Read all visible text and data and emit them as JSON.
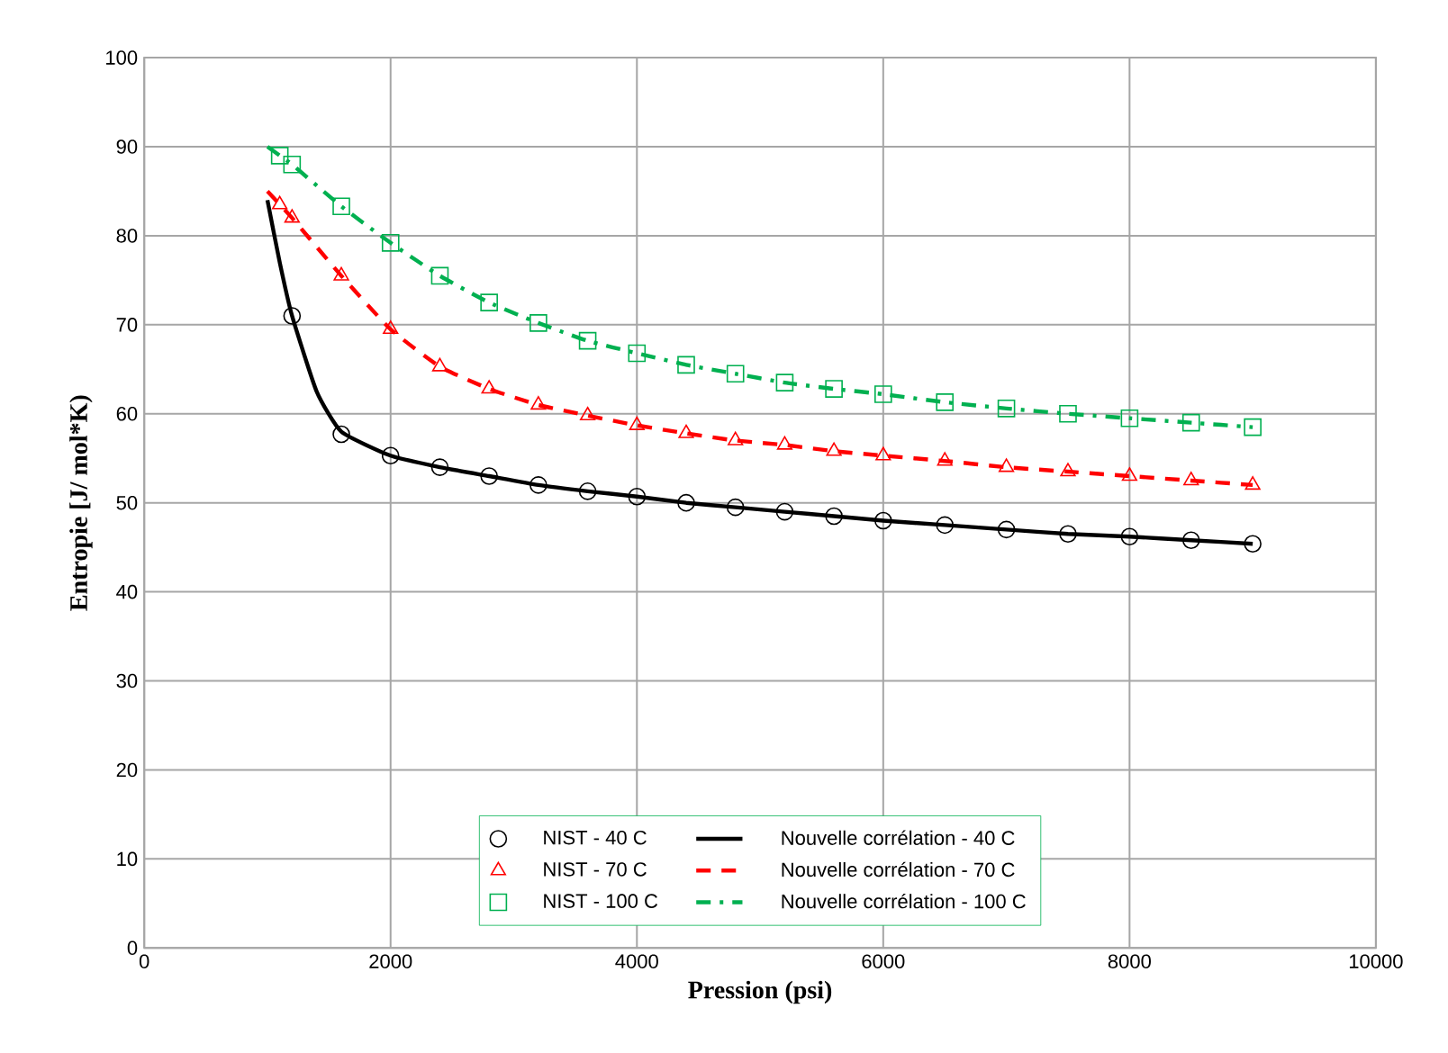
{
  "chart_data": {
    "type": "scatter",
    "xlabel": "Pression (psi)",
    "ylabel": "Entropie  [J/ mol*K)",
    "xlim": [
      0,
      10000
    ],
    "ylim": [
      0,
      100
    ],
    "xticks": [
      0,
      2000,
      4000,
      6000,
      8000,
      10000
    ],
    "yticks": [
      0,
      10,
      20,
      30,
      40,
      50,
      60,
      70,
      80,
      90,
      100
    ],
    "grid": true,
    "legend": "bottom",
    "series": [
      {
        "name": "NIST - 40 C",
        "marker": "circle",
        "color": "#000000",
        "x": [
          1200,
          1600,
          2000,
          2400,
          2800,
          3200,
          3600,
          4000,
          4400,
          4800,
          5200,
          5600,
          6000,
          6500,
          7000,
          7500,
          8000,
          8500,
          9000
        ],
        "values": [
          71,
          57.7,
          55.3,
          54,
          53,
          52,
          51.3,
          50.7,
          50,
          49.5,
          49,
          48.5,
          48,
          47.5,
          47,
          46.5,
          46.2,
          45.8,
          45.4
        ]
      },
      {
        "name": "Nouvelle corrélation - 40 C",
        "type": "line",
        "marker": "none",
        "line_style": "solid",
        "color": "#000000",
        "x": [
          1000,
          1100,
          1200,
          1400,
          1600,
          2000,
          2400,
          2800,
          3200,
          3600,
          4000,
          4400,
          4800,
          5200,
          5600,
          6000,
          6500,
          7000,
          7500,
          8000,
          8500,
          9000
        ],
        "values": [
          84,
          77,
          71,
          62.5,
          58,
          55.3,
          54,
          53,
          52,
          51.3,
          50.7,
          50,
          49.5,
          49,
          48.5,
          48,
          47.5,
          47,
          46.5,
          46.2,
          45.8,
          45.4
        ]
      },
      {
        "name": "NIST - 70 C",
        "marker": "triangle",
        "color": "#ff0000",
        "x": [
          1100,
          1200,
          1600,
          2000,
          2400,
          2800,
          3200,
          3600,
          4000,
          4400,
          4800,
          5200,
          5600,
          6000,
          6500,
          7000,
          7500,
          8000,
          8500,
          9000
        ],
        "values": [
          83.5,
          82,
          75.5,
          69.5,
          65.3,
          62.8,
          61,
          59.8,
          58.7,
          57.8,
          57,
          56.5,
          55.8,
          55.3,
          54.7,
          54,
          53.5,
          53,
          52.5,
          52
        ]
      },
      {
        "name": "Nouvelle corrélation - 70 C",
        "type": "line",
        "marker": "none",
        "line_style": "dashed",
        "color": "#ff0000",
        "x": [
          1000,
          1100,
          1200,
          1600,
          2000,
          2400,
          2800,
          3200,
          3600,
          4000,
          4400,
          4800,
          5200,
          5600,
          6000,
          6500,
          7000,
          7500,
          8000,
          8500,
          9000
        ],
        "values": [
          85,
          83.5,
          82,
          75.5,
          69.5,
          65.3,
          62.8,
          61,
          59.8,
          58.7,
          57.8,
          57,
          56.5,
          55.8,
          55.3,
          54.7,
          54,
          53.5,
          53,
          52.5,
          52
        ]
      },
      {
        "name": "NIST - 100 C",
        "marker": "square",
        "color": "#00b050",
        "x": [
          1100,
          1200,
          1600,
          2000,
          2400,
          2800,
          3200,
          3600,
          4000,
          4400,
          4800,
          5200,
          5600,
          6000,
          6500,
          7000,
          7500,
          8000,
          8500,
          9000
        ],
        "values": [
          89,
          88,
          83.3,
          79.2,
          75.5,
          72.5,
          70.2,
          68.2,
          66.8,
          65.5,
          64.5,
          63.5,
          62.8,
          62.2,
          61.3,
          60.6,
          60,
          59.5,
          59,
          58.5
        ]
      },
      {
        "name": "Nouvelle corrélation - 100 C",
        "type": "line",
        "marker": "none",
        "line_style": "dashdot",
        "color": "#00b050",
        "x": [
          1000,
          1100,
          1200,
          1600,
          2000,
          2400,
          2800,
          3200,
          3600,
          4000,
          4400,
          4800,
          5200,
          5600,
          6000,
          6500,
          7000,
          7500,
          8000,
          8500,
          9000
        ],
        "values": [
          90,
          89,
          88,
          83.3,
          79.2,
          75.5,
          72.5,
          70.2,
          68.2,
          66.8,
          65.5,
          64.5,
          63.5,
          62.8,
          62.2,
          61.3,
          60.6,
          60,
          59.5,
          59,
          58.5
        ]
      }
    ]
  }
}
